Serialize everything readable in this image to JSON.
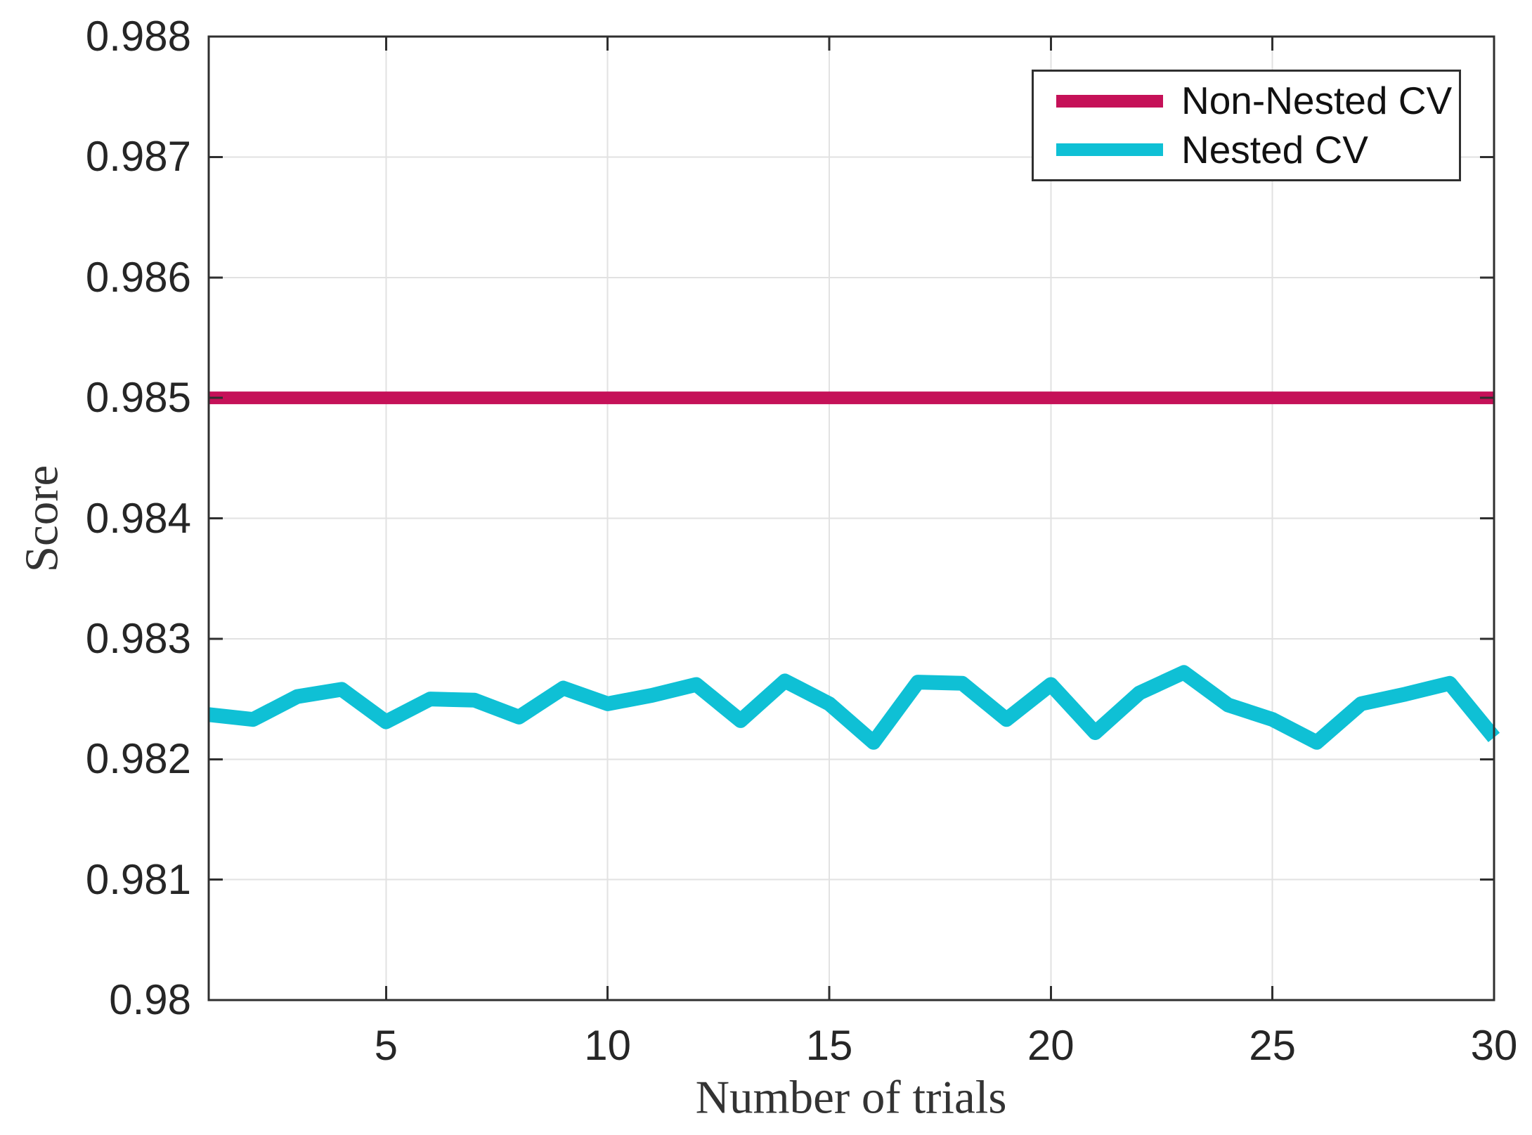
{
  "figure": {
    "background": "#ffffff"
  },
  "chart_data": {
    "type": "line",
    "title": "",
    "xlabel": "Number of trials",
    "ylabel": "Score",
    "x": [
      1,
      2,
      3,
      4,
      5,
      6,
      7,
      8,
      9,
      10,
      11,
      12,
      13,
      14,
      15,
      16,
      17,
      18,
      19,
      20,
      21,
      22,
      23,
      24,
      25,
      26,
      27,
      28,
      29,
      30
    ],
    "series": [
      {
        "name": "Non-Nested CV",
        "color": "#C51158",
        "line_width": 18,
        "values": [
          0.985,
          0.985,
          0.985,
          0.985,
          0.985,
          0.985,
          0.985,
          0.985,
          0.985,
          0.985,
          0.985,
          0.985,
          0.985,
          0.985,
          0.985,
          0.985,
          0.985,
          0.985,
          0.985,
          0.985,
          0.985,
          0.985,
          0.985,
          0.985,
          0.985,
          0.985,
          0.985,
          0.985,
          0.985,
          0.985
        ]
      },
      {
        "name": "Nested CV",
        "color": "#0FC0D5",
        "line_width": 21,
        "values": [
          0.98237,
          0.98233,
          0.98252,
          0.98258,
          0.98231,
          0.9825,
          0.98249,
          0.98235,
          0.98259,
          0.98246,
          0.98253,
          0.98262,
          0.98232,
          0.98265,
          0.98246,
          0.98214,
          0.98264,
          0.98263,
          0.98233,
          0.98262,
          0.98222,
          0.98255,
          0.98272,
          0.98245,
          0.98233,
          0.98214,
          0.98246,
          0.98254,
          0.98263,
          0.98218
        ]
      }
    ],
    "xlim": [
      1,
      30
    ],
    "ylim": [
      0.98,
      0.988
    ],
    "xticks": [
      5,
      10,
      15,
      20,
      25,
      30
    ],
    "xtick_labels": [
      "5",
      "10",
      "15",
      "20",
      "25",
      "30"
    ],
    "yticks": [
      0.98,
      0.981,
      0.982,
      0.983,
      0.984,
      0.985,
      0.986,
      0.987,
      0.988
    ],
    "ytick_labels": [
      "0.98",
      "0.981",
      "0.982",
      "0.983",
      "0.984",
      "0.985",
      "0.986",
      "0.987",
      "0.988"
    ],
    "grid": true,
    "legend_position": "top-right",
    "axis_color": "#2f2f2f",
    "grid_color": "#e2e2e2",
    "tick_label_color": "#262626"
  }
}
